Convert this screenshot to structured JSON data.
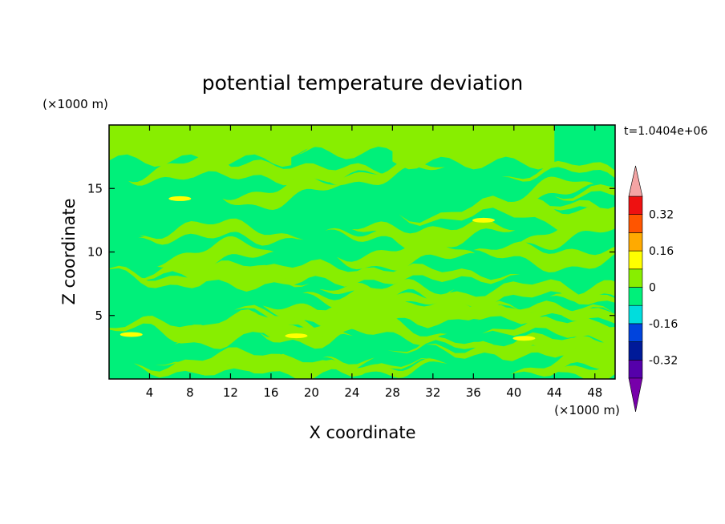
{
  "chart_data": {
    "type": "heatmap",
    "title": "potential temperature deviation",
    "xlabel": "X coordinate",
    "ylabel": "Z coordinate",
    "x_unit": "(×1000 m)",
    "y_unit": "(×1000 m)",
    "time_label": "t=1.0404e+06",
    "x_ticks": [
      4,
      8,
      12,
      16,
      20,
      24,
      28,
      32,
      36,
      40,
      44,
      48
    ],
    "y_ticks": [
      5,
      10,
      15
    ],
    "xlim": [
      0,
      50
    ],
    "ylim": [
      0,
      20
    ],
    "colorbar": {
      "tick_labels": [
        "0.32",
        "0.16",
        "0",
        "-0.16",
        "-0.32"
      ],
      "tick_values": [
        0.32,
        0.16,
        0,
        -0.16,
        -0.32
      ],
      "levels": [
        -0.4,
        -0.32,
        -0.24,
        -0.16,
        -0.08,
        0,
        0.08,
        0.16,
        0.24,
        0.32,
        0.4
      ],
      "colors": [
        "#5500aa",
        "#001a99",
        "#0044dd",
        "#00dddd",
        "#00f07a",
        "#88ee00",
        "#ffff00",
        "#ffaa00",
        "#ff5500",
        "#ee1111"
      ],
      "under_color": "#7700aa",
      "over_color": "#f4a4a4"
    },
    "field_colors": {
      "background": "#00f07a",
      "positive": "#88ee00",
      "strong_positive": "#ffff00"
    }
  }
}
